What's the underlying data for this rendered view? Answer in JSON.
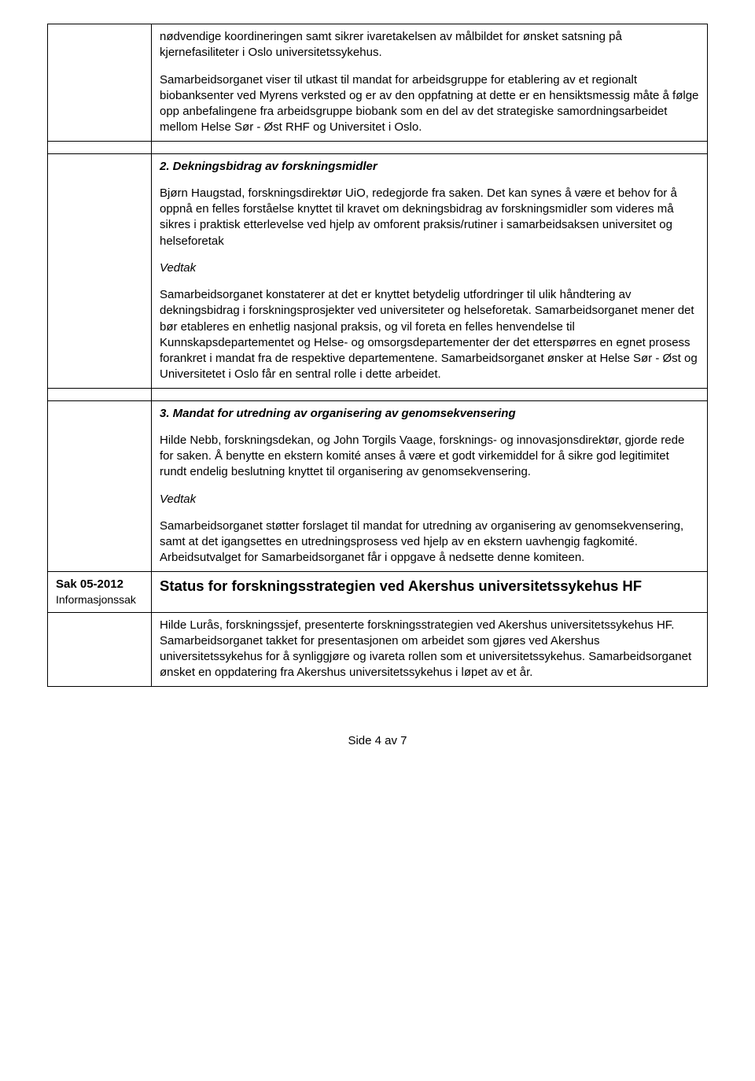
{
  "row1": {
    "p1": "nødvendige koordineringen samt sikrer ivaretakelsen av målbildet for ønsket satsning på kjernefasiliteter i Oslo universitetssykehus.",
    "p2": "Samarbeidsorganet viser til utkast til mandat for arbeidsgruppe for etablering av et regionalt biobanksenter ved Myrens verksted og er av den oppfatning at dette er en hensiktsmessig måte å følge opp anbefalingene fra arbeidsgruppe biobank som en del av det strategiske samordningsarbeidet mellom Helse Sør - Øst RHF og Universitet i Oslo."
  },
  "row2": {
    "heading": "2. Dekningsbidrag av forskningsmidler",
    "p1": "Bjørn Haugstad, forskningsdirektør UiO, redegjorde fra saken. Det kan synes å være et behov for å oppnå en felles forståelse knyttet til kravet om dekningsbidrag av forskningsmidler som videres må sikres i praktisk etterlevelse ved hjelp av omforent praksis/rutiner i samarbeidsaksen universitet og helseforetak",
    "vedtak_label": "Vedtak",
    "p2": "Samarbeidsorganet konstaterer at det er knyttet betydelig utfordringer til ulik håndtering av dekningsbidrag i forskningsprosjekter ved universiteter og helseforetak. Samarbeidsorganet mener det bør etableres en enhetlig nasjonal praksis, og vil foreta en felles henvendelse til Kunnskapsdepartementet og Helse- og omsorgsdepartementer der det etterspørres en egnet prosess forankret i mandat fra de respektive departementene. Samarbeidsorganet ønsker at Helse Sør - Øst og Universitetet i Oslo får en sentral rolle i dette arbeidet."
  },
  "row3": {
    "heading": "3. Mandat for utredning av organisering av genomsekvensering",
    "p1": "Hilde Nebb, forskningsdekan, og John Torgils Vaage, forsknings- og innovasjonsdirektør, gjorde rede for saken. Å benytte en ekstern komité anses å være et godt virkemiddel for å sikre god legitimitet rundt endelig beslutning knyttet til organisering av genomsekvensering.",
    "vedtak_label": "Vedtak",
    "p2": "Samarbeidsorganet støtter forslaget til mandat for utredning av organisering av genomsekvensering, samt at det igangsettes en utredningsprosess ved hjelp av en ekstern uavhengig fagkomité. Arbeidsutvalget for Samarbeidsorganet får i oppgave å nedsette denne komiteen."
  },
  "row4": {
    "left_label": "Sak 05-2012",
    "left_sub": "Informasjonssak",
    "heading": "Status for forskningsstrategien ved Akershus universitetssykehus HF",
    "p1": "Hilde Lurås, forskningssjef, presenterte forskningsstrategien ved Akershus universitetssykehus HF. Samarbeidsorganet takket for presentasjonen om arbeidet som gjøres ved Akershus universitetssykehus for å synliggjøre og ivareta rollen som et universitetssykehus.  Samarbeidsorganet ønsket en oppdatering fra Akershus universitetssykehus i løpet av et år."
  },
  "footer": "Side 4 av 7"
}
